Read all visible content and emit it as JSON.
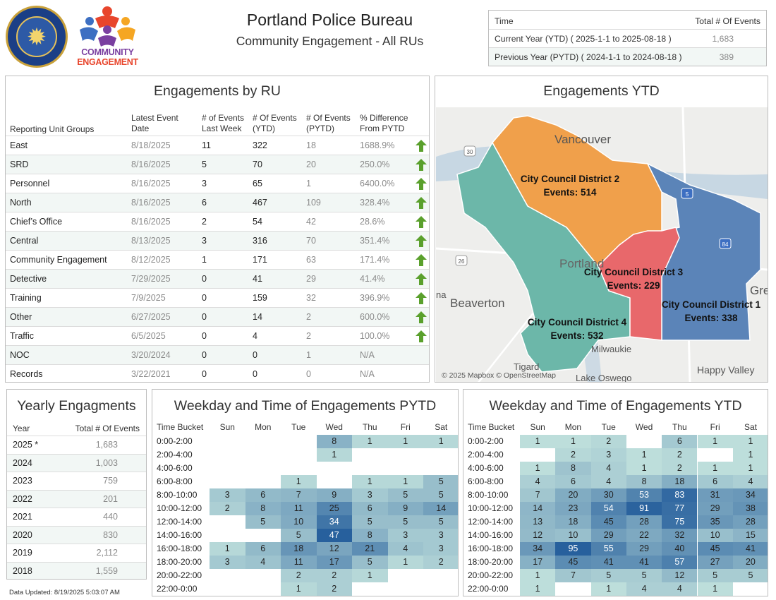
{
  "header": {
    "title": "Portland Police Bureau",
    "subtitle": "Community Engagement - All RUs",
    "badge_text": "PORTLAND POLICE BUREAU STRATEGIC SERVICES DIVISION",
    "logo_line1": "COMMUNITY",
    "logo_line2": "ENGAGEMENT"
  },
  "time_summary": {
    "col_time": "Time",
    "col_total": "Total # Of Events",
    "rows": [
      {
        "label": "Current Year (YTD) ( 2025-1-1 to 2025-08-18 )",
        "value": "1,683"
      },
      {
        "label": "Previous Year (PYTD) ( 2024-1-1 to 2024-08-18 )",
        "value": "389"
      }
    ]
  },
  "ru_table": {
    "title": "Engagements by RU",
    "headers": {
      "group": "Reporting Unit Groups",
      "latest": "Latest Event Date",
      "last_week": "# of Events Last Week",
      "ytd": "# Of Events (YTD)",
      "pytd": "# Of Events (PYTD)",
      "diff": "% Difference From PYTD"
    },
    "rows": [
      {
        "group": "East",
        "latest": "8/18/2025",
        "last_week": "11",
        "ytd": "322",
        "pytd": "18",
        "diff": "1688.9%",
        "trend": "up"
      },
      {
        "group": "SRD",
        "latest": "8/16/2025",
        "last_week": "5",
        "ytd": "70",
        "pytd": "20",
        "diff": "250.0%",
        "trend": "up"
      },
      {
        "group": "Personnel",
        "latest": "8/16/2025",
        "last_week": "3",
        "ytd": "65",
        "pytd": "1",
        "diff": "6400.0%",
        "trend": "up"
      },
      {
        "group": "North",
        "latest": "8/16/2025",
        "last_week": "6",
        "ytd": "467",
        "pytd": "109",
        "diff": "328.4%",
        "trend": "up"
      },
      {
        "group": "Chief’s Office",
        "latest": "8/16/2025",
        "last_week": "2",
        "ytd": "54",
        "pytd": "42",
        "diff": "28.6%",
        "trend": "up"
      },
      {
        "group": "Central",
        "latest": "8/13/2025",
        "last_week": "3",
        "ytd": "316",
        "pytd": "70",
        "diff": "351.4%",
        "trend": "up"
      },
      {
        "group": "Community Engagement",
        "latest": "8/12/2025",
        "last_week": "1",
        "ytd": "171",
        "pytd": "63",
        "diff": "171.4%",
        "trend": "up"
      },
      {
        "group": "Detective",
        "latest": "7/29/2025",
        "last_week": "0",
        "ytd": "41",
        "pytd": "29",
        "diff": "41.4%",
        "trend": "up"
      },
      {
        "group": "Training",
        "latest": "7/9/2025",
        "last_week": "0",
        "ytd": "159",
        "pytd": "32",
        "diff": "396.9%",
        "trend": "up"
      },
      {
        "group": "Other",
        "latest": "6/27/2025",
        "last_week": "0",
        "ytd": "14",
        "pytd": "2",
        "diff": "600.0%",
        "trend": "up"
      },
      {
        "group": "Traffic",
        "latest": "6/5/2025",
        "last_week": "0",
        "ytd": "4",
        "pytd": "2",
        "diff": "100.0%",
        "trend": "up"
      },
      {
        "group": "NOC",
        "latest": "3/20/2024",
        "last_week": "0",
        "ytd": "0",
        "pytd": "1",
        "diff": "N/A",
        "trend": "none"
      },
      {
        "group": "Records",
        "latest": "3/22/2021",
        "last_week": "0",
        "ytd": "0",
        "pytd": "0",
        "diff": "N/A",
        "trend": "none"
      }
    ],
    "up_color": "#5aa02c"
  },
  "map": {
    "title": "Engagements YTD",
    "credit": "© 2025 Mapbox © OpenStreetMap",
    "districts": [
      {
        "name": "City Council District 2",
        "events": "Events: 514",
        "color": "#f0a04b"
      },
      {
        "name": "City Council District 3",
        "events": "Events: 229",
        "color": "#e8686b"
      },
      {
        "name": "City Council District 1",
        "events": "Events: 338",
        "color": "#5b84b8"
      },
      {
        "name": "City Council District 4",
        "events": "Events: 532",
        "color": "#6cb7a9"
      }
    ],
    "places": [
      "Vancouver",
      "Portland",
      "Beaverton",
      "Milwaukie",
      "Tigard",
      "Lake Oswego",
      "Happy Valley",
      "Gre",
      "na"
    ],
    "shields": [
      "30",
      "5",
      "84",
      "26"
    ]
  },
  "yearly": {
    "title": "Yearly Engagments",
    "col_year": "Year",
    "col_total": "Total # Of Events",
    "rows": [
      {
        "year": "2025 *",
        "total": "1,683"
      },
      {
        "year": "2024",
        "total": "1,003"
      },
      {
        "year": "2023",
        "total": "759"
      },
      {
        "year": "2022",
        "total": "201"
      },
      {
        "year": "2021",
        "total": "440"
      },
      {
        "year": "2020",
        "total": "830"
      },
      {
        "year": "2019",
        "total": "2,112"
      },
      {
        "year": "2018",
        "total": "1,559"
      }
    ]
  },
  "heat_pytd": {
    "title": "Weekday and Time of Engagements PYTD",
    "bucket_label": "Time Bucket",
    "days": [
      "Sun",
      "Mon",
      "Tue",
      "Wed",
      "Thu",
      "Fri",
      "Sat"
    ],
    "buckets": [
      "0:00-2:00",
      "2:00-4:00",
      "4:00-6:00",
      "6:00-8:00",
      "8:00-10:00",
      "10:00-12:00",
      "12:00-14:00",
      "14:00-16:00",
      "16:00-18:00",
      "18:00-20:00",
      "20:00-22:00",
      "22:00-0:00"
    ],
    "values": [
      [
        null,
        null,
        null,
        8,
        1,
        1,
        1
      ],
      [
        null,
        null,
        null,
        1,
        null,
        null,
        null
      ],
      [
        null,
        null,
        null,
        null,
        null,
        null,
        null
      ],
      [
        null,
        null,
        1,
        null,
        1,
        1,
        5
      ],
      [
        3,
        6,
        7,
        9,
        3,
        5,
        5
      ],
      [
        2,
        8,
        11,
        25,
        6,
        9,
        14
      ],
      [
        null,
        5,
        10,
        34,
        5,
        5,
        5
      ],
      [
        null,
        null,
        5,
        47,
        8,
        3,
        3
      ],
      [
        1,
        6,
        18,
        12,
        21,
        4,
        3
      ],
      [
        3,
        4,
        11,
        17,
        5,
        1,
        2
      ],
      [
        null,
        null,
        2,
        2,
        1,
        null,
        null
      ],
      [
        null,
        null,
        1,
        2,
        null,
        null,
        null
      ]
    ],
    "max": 47
  },
  "heat_ytd": {
    "title": "Weekday and Time of Engagements YTD",
    "bucket_label": "Time Bucket",
    "days": [
      "Sun",
      "Mon",
      "Tue",
      "Wed",
      "Thu",
      "Fri",
      "Sat"
    ],
    "buckets": [
      "0:00-2:00",
      "2:00-4:00",
      "4:00-6:00",
      "6:00-8:00",
      "8:00-10:00",
      "10:00-12:00",
      "12:00-14:00",
      "14:00-16:00",
      "16:00-18:00",
      "18:00-20:00",
      "20:00-22:00",
      "22:00-0:00"
    ],
    "values": [
      [
        1,
        1,
        2,
        null,
        6,
        1,
        1
      ],
      [
        null,
        2,
        3,
        1,
        2,
        null,
        1
      ],
      [
        1,
        8,
        4,
        1,
        2,
        1,
        1
      ],
      [
        4,
        6,
        4,
        8,
        18,
        6,
        4
      ],
      [
        7,
        20,
        30,
        53,
        83,
        31,
        34
      ],
      [
        14,
        23,
        54,
        91,
        77,
        29,
        38
      ],
      [
        13,
        18,
        45,
        28,
        75,
        35,
        28
      ],
      [
        12,
        10,
        29,
        22,
        32,
        10,
        15
      ],
      [
        34,
        95,
        55,
        29,
        40,
        45,
        41
      ],
      [
        17,
        45,
        41,
        41,
        57,
        27,
        20
      ],
      [
        1,
        7,
        5,
        5,
        12,
        5,
        5
      ],
      [
        1,
        null,
        1,
        4,
        4,
        1,
        null
      ]
    ],
    "max": 95
  },
  "footer": {
    "updated": "Data Updated: 8/19/2025 5:03:07 AM"
  }
}
